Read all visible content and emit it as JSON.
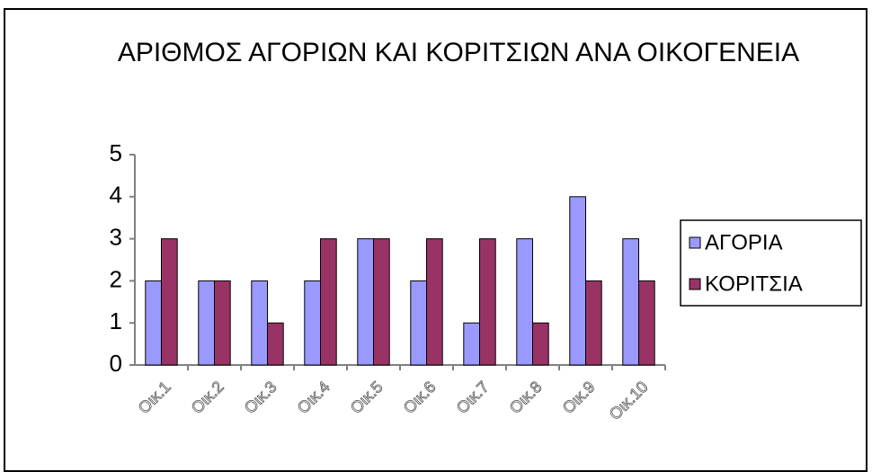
{
  "chart_data": {
    "type": "bar",
    "title": "ΑΡΙΘΜΟΣ ΑΓΟΡΙΩΝ ΚΑΙ ΚΟΡΙΤΣΙΩΝ ΑΝΑ ΟΙΚΟΓΕΝΕΙΑ",
    "categories": [
      "Οικ.1",
      "Οικ.2",
      "Οικ.3",
      "Οικ.4",
      "Οικ.5",
      "Οικ.6",
      "Οικ.7",
      "Οικ.8",
      "Οικ.9",
      "Οικ.10"
    ],
    "series": [
      {
        "name": "ΑΓΟΡΙΑ",
        "color": "#9999ff",
        "values": [
          2,
          2,
          2,
          2,
          3,
          2,
          1,
          3,
          4,
          3
        ]
      },
      {
        "name": "ΚΟΡΙΤΣΙΑ",
        "color": "#993366",
        "values": [
          3,
          2,
          1,
          3,
          3,
          3,
          3,
          1,
          2,
          2
        ]
      }
    ],
    "ylim": [
      0,
      5
    ],
    "yticks": [
      0,
      1,
      2,
      3,
      4,
      5
    ],
    "grid": false,
    "legend": "right"
  }
}
